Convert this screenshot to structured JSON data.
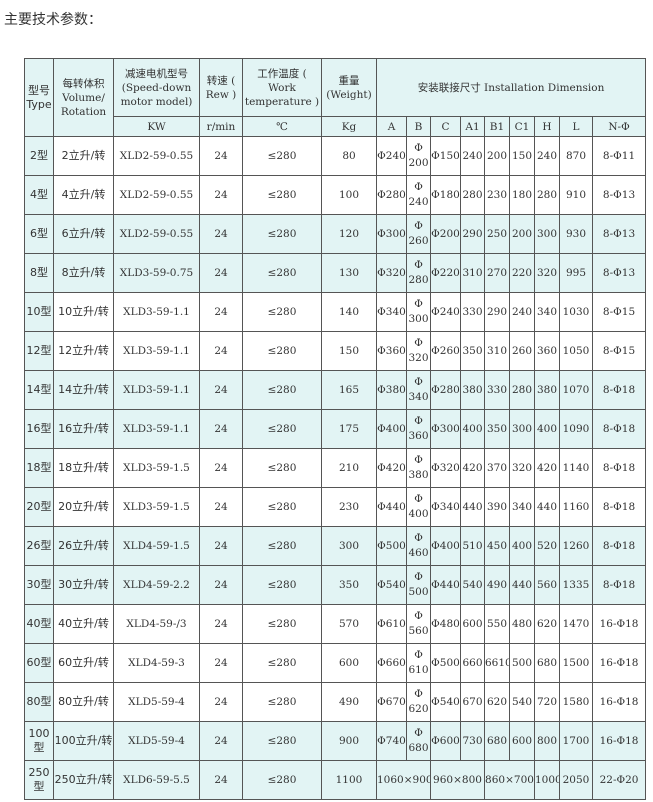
{
  "title": "主要技术参数：",
  "header": {
    "type": "型号 Type",
    "volume": "每转体积 Volume/ Rotation",
    "motor": "减速电机型号 (Speed-down motor model)",
    "speed": "转速 ( Rew )",
    "temp": "工作温度 ( Work temperature )",
    "weight": "重量 (Weight)",
    "install": "安装联接尺寸 Installation Dimension",
    "units": {
      "motor": "KW",
      "speed": "r/min",
      "temp": "℃",
      "weight": "Kg"
    },
    "dims": [
      "A",
      "B",
      "C",
      "A1",
      "B1",
      "C1",
      "H",
      "L",
      "N-Φ"
    ]
  },
  "rows": [
    [
      "2型",
      "2立升/转",
      "XLD2-59-0.55",
      "24",
      "≤280",
      "80",
      "Φ240",
      "200",
      "Φ150",
      "240",
      "200",
      "150",
      "240",
      "870",
      "8-Φ11"
    ],
    [
      "4型",
      "4立升/转",
      "XLD2-59-0.55",
      "24",
      "≤280",
      "100",
      "Φ280",
      "240",
      "Φ180",
      "280",
      "230",
      "180",
      "280",
      "910",
      "8-Φ13"
    ],
    [
      "6型",
      "6立升/转",
      "XLD2-59-0.55",
      "24",
      "≤280",
      "120",
      "Φ300",
      "260",
      "Φ200",
      "290",
      "250",
      "200",
      "300",
      "930",
      "8-Φ13"
    ],
    [
      "8型",
      "8立升/转",
      "XLD3-59-0.75",
      "24",
      "≤280",
      "130",
      "Φ320",
      "280",
      "Φ220",
      "310",
      "270",
      "220",
      "320",
      "995",
      "8-Φ13"
    ],
    [
      "10型",
      "10立升/转",
      "XLD3-59-1.1",
      "24",
      "≤280",
      "140",
      "Φ340",
      "300",
      "Φ240",
      "330",
      "290",
      "240",
      "340",
      "1030",
      "8-Φ15"
    ],
    [
      "12型",
      "12立升/转",
      "XLD3-59-1.1",
      "24",
      "≤280",
      "150",
      "Φ360",
      "320",
      "Φ260",
      "350",
      "310",
      "260",
      "360",
      "1050",
      "8-Φ15"
    ],
    [
      "14型",
      "14立升/转",
      "XLD3-59-1.1",
      "24",
      "≤280",
      "165",
      "Φ380",
      "340",
      "Φ280",
      "380",
      "330",
      "280",
      "380",
      "1070",
      "8-Φ18"
    ],
    [
      "16型",
      "16立升/转",
      "XLD3-59-1.1",
      "24",
      "≤280",
      "175",
      "Φ400",
      "360",
      "Φ300",
      "400",
      "350",
      "300",
      "400",
      "1090",
      "8-Φ18"
    ],
    [
      "18型",
      "18立升/转",
      "XLD3-59-1.5",
      "24",
      "≤280",
      "210",
      "Φ420",
      "380",
      "Φ320",
      "420",
      "370",
      "320",
      "420",
      "1140",
      "8-Φ18"
    ],
    [
      "20型",
      "20立升/转",
      "XLD3-59-1.5",
      "24",
      "≤280",
      "230",
      "Φ440",
      "400",
      "Φ340",
      "440",
      "390",
      "340",
      "440",
      "1160",
      "8-Φ18"
    ],
    [
      "26型",
      "26立升/转",
      "XLD4-59-1.5",
      "24",
      "≤280",
      "300",
      "Φ500",
      "460",
      "Φ400",
      "510",
      "450",
      "400",
      "520",
      "1260",
      "8-Φ18"
    ],
    [
      "30型",
      "30立升/转",
      "XLD4-59-2.2",
      "24",
      "≤280",
      "350",
      "Φ540",
      "500",
      "Φ440",
      "540",
      "490",
      "440",
      "560",
      "1335",
      "8-Φ18"
    ],
    [
      "40型",
      "40立升/转",
      "XLD4-59-/3",
      "24",
      "≤280",
      "570",
      "Φ610",
      "560",
      "Φ480",
      "600",
      "550",
      "480",
      "620",
      "1470",
      "16-Φ18"
    ],
    [
      "60型",
      "60立升/转",
      "XLD4-59-3",
      "24",
      "≤280",
      "600",
      "Φ660",
      "610",
      "Φ500",
      "660",
      "6610",
      "500",
      "680",
      "1500",
      "16-Φ18"
    ],
    [
      "80型",
      "80立升/转",
      "XLD5-59-4",
      "24",
      "≤280",
      "490",
      "Φ670",
      "620",
      "Φ540",
      "670",
      "620",
      "540",
      "720",
      "1580",
      "16-Φ18"
    ],
    [
      "100型",
      "100立升/转",
      "XLD5-59-4",
      "24",
      "≤280",
      "900",
      "Φ740",
      "680",
      "Φ600",
      "730",
      "680",
      "600",
      "800",
      "1700",
      "16-Φ18"
    ]
  ],
  "last_row": [
    "250型",
    "250立升/转",
    "XLD6-59-5.5",
    "24",
    "≤280",
    "1100",
    "1060×900",
    "960×800",
    "860×700",
    "1000",
    "2050",
    "22-Φ20"
  ],
  "phi_symbol": "Φ",
  "shade_color": "#e2f4f4"
}
